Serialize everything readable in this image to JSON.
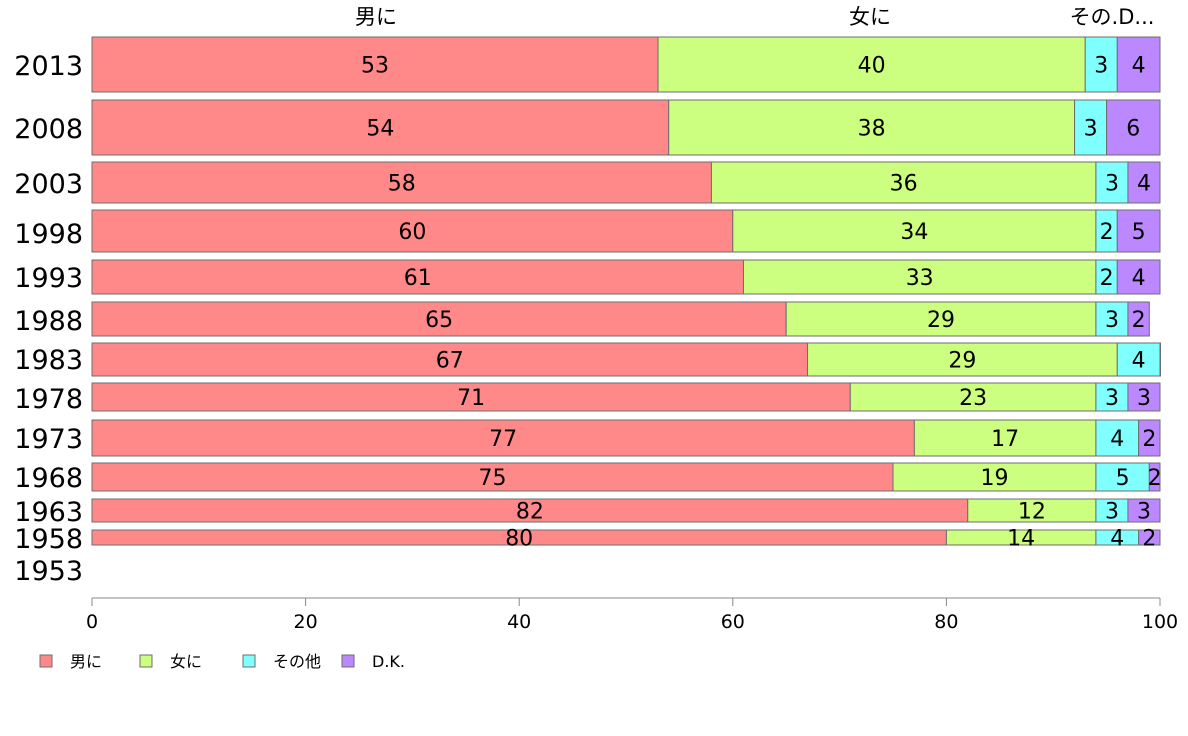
{
  "chart_data": {
    "type": "bar",
    "orientation": "horizontal",
    "stacked": true,
    "categories": [
      "2013",
      "2008",
      "2003",
      "1998",
      "1993",
      "1988",
      "1983",
      "1978",
      "1973",
      "1968",
      "1963",
      "1958",
      "1953"
    ],
    "series": [
      {
        "name": "男に",
        "color": "#ff8888",
        "values": [
          53,
          54,
          58,
          60,
          61,
          65,
          67,
          71,
          77,
          75,
          82,
          80,
          null
        ]
      },
      {
        "name": "女に",
        "color": "#ccff7f",
        "values": [
          40,
          38,
          36,
          34,
          33,
          29,
          29,
          23,
          17,
          19,
          12,
          14,
          null
        ]
      },
      {
        "name": "その他",
        "color": "#80ffff",
        "values": [
          3,
          3,
          3,
          2,
          2,
          3,
          4,
          3,
          4,
          5,
          3,
          4,
          null
        ]
      },
      {
        "name": "D.K.",
        "color": "#bb88ff",
        "values": [
          4,
          6,
          4,
          5,
          4,
          2,
          0.3,
          3,
          2,
          2,
          3,
          2,
          null
        ]
      }
    ],
    "value_labels": [
      [
        "53",
        "40",
        "3",
        "4"
      ],
      [
        "54",
        "38",
        "3",
        "6"
      ],
      [
        "58",
        "36",
        "3",
        "4"
      ],
      [
        "60",
        "34",
        "2",
        "5"
      ],
      [
        "61",
        "33",
        "2",
        "4"
      ],
      [
        "65",
        "29",
        "3",
        "2"
      ],
      [
        "67",
        "29",
        "4",
        ""
      ],
      [
        "71",
        "23",
        "3",
        "3"
      ],
      [
        "77",
        "17",
        "4",
        "2"
      ],
      [
        "75",
        "19",
        "5",
        "2"
      ],
      [
        "82",
        "12",
        "3",
        "3"
      ],
      [
        "80",
        "14",
        "4",
        "2"
      ],
      [
        "",
        "",
        "",
        ""
      ]
    ],
    "top_labels": [
      "男に",
      "女に",
      "その.D..."
    ],
    "xlim": [
      0,
      100
    ],
    "xticks": [
      "0",
      "20",
      "40",
      "60",
      "80",
      "100"
    ],
    "legend_position": "bottom-left",
    "grid": false
  }
}
